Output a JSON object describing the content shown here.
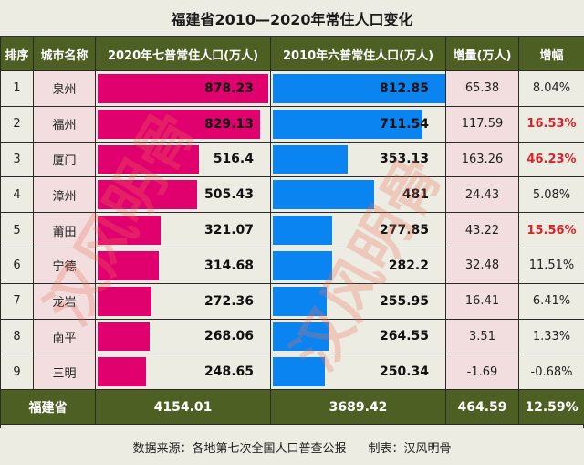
{
  "title": "福建省2010—2020年常住人口变化",
  "headers": {
    "rank": "排序",
    "city": "城市名称",
    "pop2020": "2020年七普常住人口(万人)",
    "pop2010": "2010年六普常住人口(万人)",
    "increase": "增量(万人)",
    "growth": "增幅"
  },
  "rows": [
    {
      "rank": "1",
      "city": "泉州",
      "pop2020": "878.23",
      "pop2010": "812.85",
      "increase": "65.38",
      "growth": "8.04%",
      "highlight": false,
      "bar2020": 98,
      "bar2010": 99
    },
    {
      "rank": "2",
      "city": "福州",
      "pop2020": "829.13",
      "pop2010": "711.54",
      "increase": "117.59",
      "growth": "16.53%",
      "highlight": true,
      "bar2020": 93,
      "bar2010": 86
    },
    {
      "rank": "3",
      "city": "厦门",
      "pop2020": "516.4",
      "pop2010": "353.13",
      "increase": "163.26",
      "growth": "46.23%",
      "highlight": true,
      "bar2020": 58,
      "bar2010": 43
    },
    {
      "rank": "4",
      "city": "漳州",
      "pop2020": "505.43",
      "pop2010": "481",
      "increase": "24.43",
      "growth": "5.08%",
      "highlight": false,
      "bar2020": 57,
      "bar2010": 58
    },
    {
      "rank": "5",
      "city": "莆田",
      "pop2020": "321.07",
      "pop2010": "277.85",
      "increase": "43.22",
      "growth": "15.56%",
      "highlight": true,
      "bar2020": 36,
      "bar2010": 34
    },
    {
      "rank": "6",
      "city": "宁德",
      "pop2020": "314.68",
      "pop2010": "282.2",
      "increase": "32.48",
      "growth": "11.51%",
      "highlight": false,
      "bar2020": 35,
      "bar2010": 34
    },
    {
      "rank": "7",
      "city": "龙岩",
      "pop2020": "272.36",
      "pop2010": "255.95",
      "increase": "16.41",
      "growth": "6.41%",
      "highlight": false,
      "bar2020": 31,
      "bar2010": 31
    },
    {
      "rank": "8",
      "city": "南平",
      "pop2020": "268.06",
      "pop2010": "264.55",
      "increase": "3.51",
      "growth": "1.33%",
      "highlight": false,
      "bar2020": 30,
      "bar2010": 32
    },
    {
      "rank": "9",
      "city": "三明",
      "pop2020": "248.65",
      "pop2010": "250.34",
      "increase": "-1.69",
      "growth": "-0.68%",
      "highlight": false,
      "bar2020": 28,
      "bar2010": 30
    }
  ],
  "total": {
    "label": "福建省",
    "pop2020": "4154.01",
    "pop2010": "3689.42",
    "increase": "464.59",
    "growth": "12.59%"
  },
  "footer": {
    "source": "数据来源：各地第七次全国人口普查公报",
    "author": "制表：汉风明骨"
  },
  "watermark": "汉风明骨",
  "colors": {
    "header_bg": "#4d5f23",
    "bar_2020": "#e0006e",
    "bar_2010": "#0a84f0",
    "highlight_text": "#d8232a",
    "city_bg": "#f2dede",
    "cell_bg": "#ecece2"
  },
  "chart_data": {
    "type": "table",
    "title": "福建省2010—2020年常住人口变化",
    "columns": [
      "排序",
      "城市名称",
      "2020年七普常住人口(万人)",
      "2010年六普常住人口(万人)",
      "增量(万人)",
      "增幅"
    ],
    "categories": [
      "泉州",
      "福州",
      "厦门",
      "漳州",
      "莆田",
      "宁德",
      "龙岩",
      "南平",
      "三明"
    ],
    "series": [
      {
        "name": "2020年七普常住人口(万人)",
        "values": [
          878.23,
          829.13,
          516.4,
          505.43,
          321.07,
          314.68,
          272.36,
          268.06,
          248.65
        ]
      },
      {
        "name": "2010年六普常住人口(万人)",
        "values": [
          812.85,
          711.54,
          353.13,
          481,
          277.85,
          282.2,
          255.95,
          264.55,
          250.34
        ]
      },
      {
        "name": "增量(万人)",
        "values": [
          65.38,
          117.59,
          163.26,
          24.43,
          43.22,
          32.48,
          16.41,
          3.51,
          -1.69
        ]
      },
      {
        "name": "增幅(%)",
        "values": [
          8.04,
          16.53,
          46.23,
          5.08,
          15.56,
          11.51,
          6.41,
          1.33,
          -0.68
        ]
      }
    ],
    "totals": {
      "label": "福建省",
      "pop2020": 4154.01,
      "pop2010": 3689.42,
      "increase": 464.59,
      "growth_pct": 12.59
    },
    "note": "数据来源：各地第七次全国人口普查公报  制表：汉风明骨",
    "in_cell_bars": [
      "2020年七普常住人口(万人)",
      "2010年六普常住人口(万人)"
    ]
  }
}
